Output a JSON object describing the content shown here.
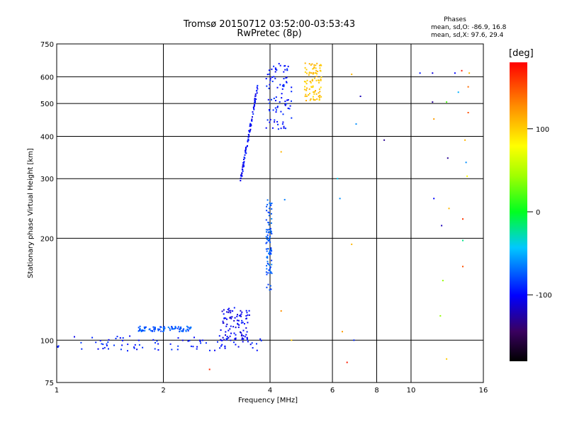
{
  "title": "Tromsø 20150712 03:52:00-03:53:43",
  "subtitle": "RwPretec (8p)",
  "stats": {
    "title": "Phases",
    "line_o": "mean, sd,O: -86.9, 16.8",
    "line_x": "mean, sd,X:  97.6, 29.4"
  },
  "colorbar": {
    "label": "[deg]",
    "ticks": [
      "100",
      "0",
      "-100"
    ],
    "range": [
      -180,
      180
    ],
    "tick_values": [
      100,
      0,
      -100
    ]
  },
  "chart_data": {
    "type": "scatter",
    "title": "Tromsø 20150712 03:52:00-03:53:43",
    "subtitle": "RwPretec (8p)",
    "xlabel": "Frequency [MHz]",
    "ylabel": "Stationary phase Virtual Height [km]",
    "xscale": "log",
    "yscale": "log",
    "xlim": [
      1,
      16
    ],
    "ylim": [
      75,
      750
    ],
    "x_ticks": [
      "1",
      "2",
      "4",
      "6",
      "8",
      "10",
      "16"
    ],
    "x_tick_values": [
      1,
      2,
      4,
      6,
      8,
      10,
      16
    ],
    "y_ticks": [
      "75",
      "100",
      "200",
      "300",
      "400",
      "500",
      "600",
      "750"
    ],
    "y_tick_values": [
      75,
      100,
      200,
      300,
      400,
      500,
      600,
      750
    ],
    "grid": true,
    "color_encoding": "phase [deg]",
    "clusters": [
      {
        "name_hint": "E-region O trace",
        "x_range": [
          1.0,
          3.8
        ],
        "y_range": [
          93,
          103
        ],
        "phase": -95
      },
      {
        "name_hint": "E-region upper band",
        "x_range": [
          1.7,
          2.4
        ],
        "y_range": [
          106,
          110
        ],
        "phase": -75
      },
      {
        "name_hint": "Es scatter",
        "x_range": [
          2.9,
          3.5
        ],
        "y_range": [
          100,
          125
        ],
        "phase": -105
      },
      {
        "name_hint": "Spread near 4 MHz",
        "x_range": [
          3.9,
          4.05
        ],
        "y_range": [
          140,
          260
        ],
        "phase": -75
      },
      {
        "name_hint": "F-region O trace rising",
        "x_range": [
          3.3,
          3.7
        ],
        "y_range": [
          295,
          570
        ],
        "phase": -100
      },
      {
        "name_hint": "F-region spread",
        "x_range": [
          3.9,
          4.6
        ],
        "y_range": [
          420,
          660
        ],
        "phase": -95
      },
      {
        "name_hint": "F-region X trace",
        "x_range": [
          5.0,
          5.6
        ],
        "y_range": [
          510,
          660
        ],
        "phase": 105
      }
    ],
    "isolated_points": [
      {
        "x": 2.7,
        "y": 82,
        "phase": 165
      },
      {
        "x": 4.3,
        "y": 360,
        "phase": 110
      },
      {
        "x": 4.3,
        "y": 122,
        "phase": 125
      },
      {
        "x": 4.4,
        "y": 260,
        "phase": -65
      },
      {
        "x": 4.6,
        "y": 100,
        "phase": 100
      },
      {
        "x": 6.2,
        "y": 300,
        "phase": -40
      },
      {
        "x": 6.3,
        "y": 262,
        "phase": -60
      },
      {
        "x": 6.4,
        "y": 106,
        "phase": 120
      },
      {
        "x": 6.6,
        "y": 86,
        "phase": 170
      },
      {
        "x": 6.8,
        "y": 192,
        "phase": 110
      },
      {
        "x": 6.8,
        "y": 610,
        "phase": 110
      },
      {
        "x": 6.9,
        "y": 100,
        "phase": -90
      },
      {
        "x": 7.0,
        "y": 435,
        "phase": -60
      },
      {
        "x": 7.2,
        "y": 525,
        "phase": -120
      },
      {
        "x": 8.4,
        "y": 390,
        "phase": -130
      },
      {
        "x": 10.6,
        "y": 615,
        "phase": -95
      },
      {
        "x": 11.5,
        "y": 615,
        "phase": -110
      },
      {
        "x": 11.5,
        "y": 505,
        "phase": -130
      },
      {
        "x": 11.6,
        "y": 450,
        "phase": 120
      },
      {
        "x": 11.6,
        "y": 262,
        "phase": -100
      },
      {
        "x": 12.2,
        "y": 218,
        "phase": -120
      },
      {
        "x": 12.1,
        "y": 118,
        "phase": 40
      },
      {
        "x": 12.3,
        "y": 150,
        "phase": 40
      },
      {
        "x": 12.6,
        "y": 505,
        "phase": 20
      },
      {
        "x": 12.7,
        "y": 345,
        "phase": -130
      },
      {
        "x": 12.8,
        "y": 245,
        "phase": 110
      },
      {
        "x": 12.6,
        "y": 88,
        "phase": 100
      },
      {
        "x": 13.3,
        "y": 615,
        "phase": -100
      },
      {
        "x": 13.6,
        "y": 540,
        "phase": -50
      },
      {
        "x": 13.9,
        "y": 625,
        "phase": 170
      },
      {
        "x": 14.0,
        "y": 228,
        "phase": 160
      },
      {
        "x": 14.0,
        "y": 197,
        "phase": -20
      },
      {
        "x": 14.0,
        "y": 165,
        "phase": 150
      },
      {
        "x": 14.2,
        "y": 390,
        "phase": 110
      },
      {
        "x": 14.3,
        "y": 335,
        "phase": -60
      },
      {
        "x": 14.4,
        "y": 305,
        "phase": 80
      },
      {
        "x": 14.5,
        "y": 470,
        "phase": 150
      },
      {
        "x": 14.5,
        "y": 560,
        "phase": 140
      },
      {
        "x": 14.6,
        "y": 615,
        "phase": 110
      }
    ]
  }
}
